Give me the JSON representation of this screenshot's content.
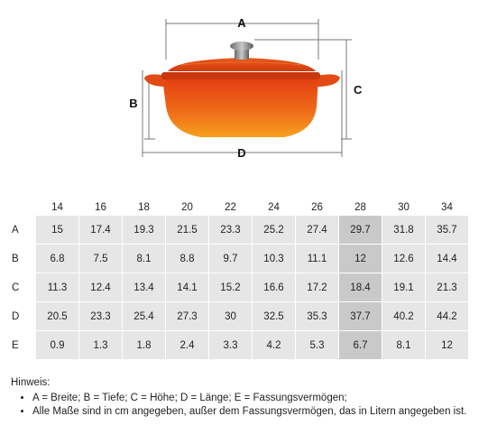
{
  "diagram": {
    "dim_a": "A",
    "dim_b": "B",
    "dim_c": "C",
    "dim_d": "D"
  },
  "table": {
    "columns": [
      "14",
      "16",
      "18",
      "20",
      "22",
      "24",
      "26",
      "28",
      "30",
      "34"
    ],
    "highlight_column": "28",
    "rows": [
      {
        "label": "A",
        "values": [
          "15",
          "17.4",
          "19.3",
          "21.5",
          "23.3",
          "25.2",
          "27.4",
          "29.7",
          "31.8",
          "35.7"
        ]
      },
      {
        "label": "B",
        "values": [
          "6.8",
          "7.5",
          "8.1",
          "8.8",
          "9.7",
          "10.3",
          "11.1",
          "12",
          "12.6",
          "14.4"
        ]
      },
      {
        "label": "C",
        "values": [
          "11.3",
          "12.4",
          "13.4",
          "14.1",
          "15.2",
          "16.6",
          "17.2",
          "18.4",
          "19.1",
          "21.3"
        ]
      },
      {
        "label": "D",
        "values": [
          "20.5",
          "23.3",
          "25.4",
          "27.3",
          "30",
          "32.5",
          "35.3",
          "37.7",
          "40.2",
          "44.2"
        ]
      },
      {
        "label": "E",
        "values": [
          "0.9",
          "1.3",
          "1.8",
          "2.4",
          "3.3",
          "4.2",
          "5.3",
          "6.7",
          "8.1",
          "12"
        ]
      }
    ]
  },
  "notes": {
    "title": "Hinweis:",
    "items": [
      "A = Breite; B = Tiefe; C = Höhe; D = Länge; E = Fassungsvermögen;",
      "Alle Maße sind in cm angegeben, außer dem Fassungsvermögen, das in Litern angegeben ist."
    ]
  },
  "colors": {
    "pot_orange": "#e8501a",
    "pot_light": "#f6a020",
    "cell_bg": "#e6e6e6",
    "cell_highlight": "#c9c9c9",
    "dimension_line": "#777777"
  }
}
